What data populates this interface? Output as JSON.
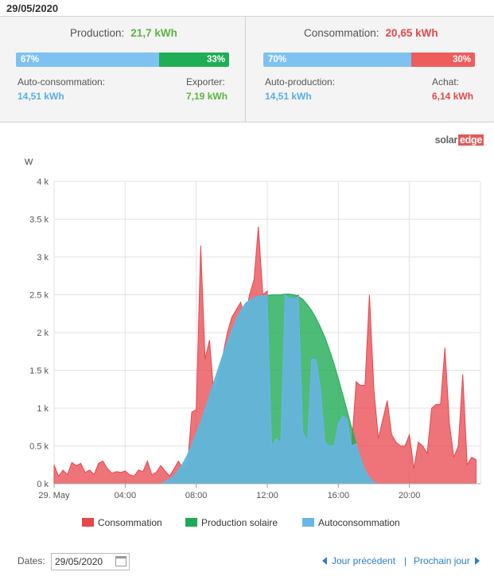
{
  "header": {
    "date": "29/05/2020"
  },
  "production": {
    "label": "Production:",
    "value": "21,7 kWh",
    "self_pct_label": "67%",
    "export_pct_label": "33%",
    "self_fraction": 0.67,
    "self_label": "Auto-consommation:",
    "self_value": "14,51 kWh",
    "export_label": "Exporter:",
    "export_value": "7,19 kWh"
  },
  "consumption": {
    "label": "Consommation:",
    "value": "20,65 kWh",
    "self_pct_label": "70%",
    "buy_pct_label": "30%",
    "self_fraction": 0.7,
    "self_label": "Auto-production:",
    "self_value": "14,51 kWh",
    "buy_label": "Achat:",
    "buy_value": "6,14 kWh"
  },
  "logo": {
    "part1": "solar",
    "part2": "edge"
  },
  "colors": {
    "consumption": "#e8464c",
    "production": "#1fab55",
    "self": "#69b7ea",
    "self_bar": "#7ec2f2",
    "export_bar": "#1fae55",
    "buy_bar": "#ee5c5c",
    "green_text": "#5cb443",
    "red_text": "#e2484b",
    "blue_text": "#5aaee8"
  },
  "chart_data": {
    "type": "area",
    "ylabel": "W",
    "ylim": [
      0,
      4000
    ],
    "xlim": [
      0,
      24
    ],
    "x_ticks": [
      0,
      4,
      8,
      12,
      16,
      20
    ],
    "x_tick_labels": [
      "29. May",
      "04:00",
      "08:00",
      "12:00",
      "16:00",
      "20:00"
    ],
    "y_ticks": [
      0,
      500,
      1000,
      1500,
      2000,
      2500,
      3000,
      3500,
      4000
    ],
    "y_tick_labels": [
      "0 k",
      "0.5 k",
      "1 k",
      "1.5 k",
      "2 k",
      "2.5 k",
      "3 k",
      "3.5 k",
      "4 k"
    ],
    "grid": true,
    "legend_position": "bottom-center",
    "series": [
      {
        "name": "Consommation",
        "color": "#e8464c",
        "x": [
          0,
          0.25,
          0.5,
          0.75,
          1,
          1.25,
          1.5,
          1.75,
          2,
          2.25,
          2.5,
          2.75,
          3,
          3.25,
          3.5,
          3.75,
          4,
          4.25,
          4.5,
          4.75,
          5,
          5.25,
          5.5,
          5.75,
          6,
          6.25,
          6.5,
          6.75,
          7,
          7.25,
          7.5,
          7.75,
          8,
          8.25,
          8.5,
          8.75,
          9,
          9.25,
          9.5,
          9.75,
          10,
          10.25,
          10.5,
          10.75,
          11,
          11.25,
          11.5,
          11.75,
          12,
          12.25,
          12.5,
          12.75,
          13,
          13.25,
          13.5,
          13.75,
          14,
          14.25,
          14.5,
          14.75,
          15,
          15.25,
          15.5,
          15.75,
          16,
          16.25,
          16.5,
          16.75,
          17,
          17.25,
          17.5,
          17.75,
          18,
          18.25,
          18.5,
          18.75,
          19,
          19.25,
          19.5,
          19.75,
          20,
          20.25,
          20.5,
          20.75,
          21,
          21.25,
          21.5,
          21.75,
          22,
          22.25,
          22.5,
          22.75,
          23,
          23.25,
          23.5,
          23.75
        ],
        "y": [
          250,
          100,
          180,
          120,
          280,
          240,
          270,
          150,
          180,
          120,
          270,
          300,
          200,
          140,
          160,
          150,
          170,
          120,
          100,
          180,
          160,
          300,
          120,
          150,
          240,
          170,
          100,
          200,
          300,
          200,
          220,
          950,
          980,
          3150,
          1650,
          1900,
          1150,
          1350,
          1700,
          2000,
          2200,
          2300,
          2400,
          2200,
          2500,
          2700,
          3400,
          2500,
          2550,
          500,
          600,
          550,
          2500,
          2450,
          2450,
          2500,
          700,
          550,
          1650,
          1650,
          1250,
          550,
          500,
          500,
          800,
          900,
          850,
          500,
          1350,
          1300,
          1300,
          2500,
          1250,
          600,
          850,
          1100,
          650,
          550,
          500,
          500,
          650,
          200,
          550,
          500,
          400,
          1000,
          1050,
          1050,
          1800,
          800,
          350,
          500,
          1450,
          250,
          350,
          320
        ]
      },
      {
        "name": "Production solaire",
        "color": "#1fab55",
        "x": [
          0,
          6,
          6.25,
          6.5,
          6.75,
          7,
          7.25,
          7.5,
          7.75,
          8,
          8.25,
          8.5,
          8.75,
          9,
          9.25,
          9.5,
          9.75,
          10,
          10.25,
          10.5,
          10.75,
          11,
          11.25,
          11.5,
          11.75,
          12,
          12.25,
          12.5,
          12.75,
          13,
          13.25,
          13.5,
          13.75,
          14,
          14.25,
          14.5,
          14.75,
          15,
          15.25,
          15.5,
          15.75,
          16,
          16.25,
          16.5,
          16.75,
          17,
          17.25,
          17.5,
          17.75,
          18,
          18.25,
          18.5,
          18.75,
          19,
          19.25,
          19.5,
          19.75,
          20,
          20.25,
          20.5,
          24
        ],
        "y": [
          0,
          0,
          30,
          60,
          110,
          180,
          270,
          380,
          520,
          670,
          820,
          990,
          1170,
          1350,
          1530,
          1710,
          1880,
          2030,
          2170,
          2290,
          2380,
          2430,
          2460,
          2480,
          2490,
          2490,
          2500,
          2500,
          2500,
          2510,
          2510,
          2500,
          2480,
          2440,
          2370,
          2290,
          2190,
          2070,
          1930,
          1770,
          1590,
          1390,
          1180,
          960,
          740,
          530,
          340,
          180,
          80,
          20,
          0,
          0,
          0,
          0,
          0,
          0,
          0,
          0,
          0,
          0,
          0
        ]
      },
      {
        "name": "Autoconsommation",
        "color": "#69b7ea",
        "x": [
          0,
          6,
          6.25,
          6.5,
          6.75,
          7,
          7.25,
          7.5,
          7.75,
          8,
          8.25,
          8.5,
          8.75,
          9,
          9.25,
          9.5,
          9.75,
          10,
          10.25,
          10.5,
          10.75,
          11,
          11.25,
          11.5,
          11.75,
          12,
          12.25,
          12.5,
          12.75,
          13,
          13.25,
          13.5,
          13.75,
          14,
          14.25,
          14.5,
          14.75,
          15,
          15.25,
          15.5,
          15.75,
          16,
          16.25,
          16.5,
          16.75,
          17,
          17.25,
          17.5,
          17.75,
          18,
          18.25,
          18.5,
          18.75,
          19,
          19.25,
          19.5,
          19.75,
          20,
          20.25,
          20.5,
          24
        ],
        "y": [
          0,
          0,
          30,
          60,
          110,
          180,
          270,
          380,
          520,
          670,
          820,
          990,
          1170,
          1350,
          1530,
          1710,
          1880,
          2030,
          2170,
          2290,
          2380,
          2430,
          2460,
          2480,
          2490,
          2490,
          500,
          600,
          550,
          2500,
          2450,
          2450,
          2480,
          700,
          550,
          1650,
          1650,
          1250,
          550,
          500,
          500,
          800,
          900,
          850,
          500,
          530,
          340,
          180,
          80,
          20,
          0,
          0,
          0,
          0,
          0,
          0,
          0,
          0,
          0,
          0,
          0
        ]
      }
    ]
  },
  "footer": {
    "dates_label": "Dates:",
    "date_value": "29/05/2020",
    "prev_label": "Jour précédent",
    "separator": "|",
    "next_label": "Prochain jour"
  }
}
